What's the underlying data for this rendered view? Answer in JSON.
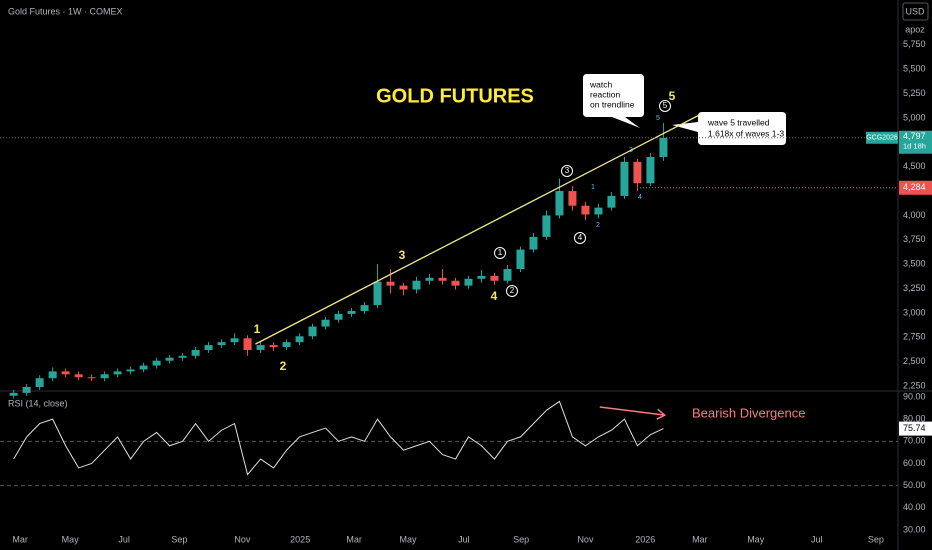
{
  "chart_data": [
    {
      "type": "candlestick",
      "title": "Gold Futures · 1W · COMEX",
      "currency": "USD",
      "user": "apoz",
      "x": [
        -1,
        1,
        3,
        5,
        7,
        9,
        11,
        13,
        15,
        17,
        19,
        21,
        23,
        25,
        27,
        29,
        31,
        33,
        35,
        37,
        39,
        41,
        43,
        45,
        47,
        49,
        51,
        53,
        55,
        57,
        59,
        61,
        63,
        65,
        67,
        69,
        71,
        73,
        75,
        77,
        79,
        81,
        83,
        85,
        87,
        89,
        91,
        93,
        95,
        97,
        99
      ],
      "open": [
        2150,
        2180,
        2240,
        2330,
        2400,
        2370,
        2340,
        2330,
        2370,
        2400,
        2420,
        2460,
        2510,
        2540,
        2560,
        2620,
        2670,
        2700,
        2740,
        2620,
        2670,
        2650,
        2700,
        2760,
        2860,
        2930,
        2990,
        3020,
        3080,
        3320,
        3280,
        3240,
        3330,
        3360,
        3330,
        3280,
        3350,
        3380,
        3330,
        3450,
        3650,
        3780,
        4000,
        4250,
        4100,
        4010,
        4080,
        4200,
        4550,
        4330,
        4600
      ],
      "high": [
        2210,
        2270,
        2360,
        2440,
        2430,
        2400,
        2370,
        2400,
        2430,
        2450,
        2490,
        2540,
        2570,
        2590,
        2650,
        2700,
        2730,
        2790,
        2770,
        2700,
        2700,
        2730,
        2790,
        2890,
        2960,
        3020,
        3050,
        3110,
        3500,
        3450,
        3310,
        3370,
        3400,
        3450,
        3360,
        3380,
        3440,
        3410,
        3490,
        3680,
        3820,
        4050,
        4380,
        4300,
        4140,
        4120,
        4240,
        4600,
        4580,
        4640,
        4950
      ],
      "low": [
        2120,
        2150,
        2210,
        2300,
        2340,
        2310,
        2300,
        2300,
        2340,
        2370,
        2390,
        2430,
        2480,
        2510,
        2530,
        2590,
        2640,
        2670,
        2560,
        2590,
        2610,
        2620,
        2670,
        2730,
        2830,
        2900,
        2960,
        2990,
        3050,
        3200,
        3180,
        3200,
        3290,
        3290,
        3240,
        3250,
        3310,
        3290,
        3300,
        3420,
        3620,
        3750,
        3970,
        4050,
        3950,
        3970,
        4050,
        4170,
        4250,
        4300,
        4560
      ],
      "close": [
        2180,
        2240,
        2330,
        2400,
        2370,
        2340,
        2330,
        2370,
        2400,
        2420,
        2460,
        2510,
        2540,
        2560,
        2620,
        2670,
        2700,
        2740,
        2620,
        2670,
        2650,
        2700,
        2760,
        2860,
        2930,
        2990,
        3020,
        3080,
        3320,
        3280,
        3240,
        3330,
        3360,
        3330,
        3280,
        3350,
        3380,
        3330,
        3450,
        3650,
        3780,
        4000,
        4250,
        4100,
        4010,
        4080,
        4200,
        4550,
        4330,
        4600,
        4797
      ],
      "up_color": "#26a69a",
      "down_color": "#ef5350",
      "xlim": [
        -3.1,
        135.1
      ],
      "ylim": [
        2199,
        6210
      ],
      "yticks": [
        {
          "value": 2250,
          "label": "2,250"
        },
        {
          "value": 2500,
          "label": "2,500"
        },
        {
          "value": 2750,
          "label": "2,750"
        },
        {
          "value": 3000,
          "label": "3,000"
        },
        {
          "value": 3250,
          "label": "3,250"
        },
        {
          "value": 3500,
          "label": "3,500"
        },
        {
          "value": 3750,
          "label": "3,750"
        },
        {
          "value": 4000,
          "label": "4,000"
        },
        {
          "value": 4250,
          "label": "4,250"
        },
        {
          "value": 4500,
          "label": "4,500"
        },
        {
          "value": 4750,
          "label": "4,750"
        },
        {
          "value": 5000,
          "label": "5,000"
        },
        {
          "value": 5250,
          "label": "5,250"
        },
        {
          "value": 5500,
          "label": "5,500"
        },
        {
          "value": 5750,
          "label": "5,750"
        }
      ],
      "last_price": {
        "value": 4797,
        "label": "4,797",
        "symbol": "GCG2026",
        "countdown": "1d 18h",
        "color": "#26a69a"
      },
      "marked_price": {
        "value": 4284,
        "label": "4,284",
        "color": "#ef5350"
      },
      "trendline": {
        "x": [
          36.2,
          104.6
        ],
        "y": [
          2680,
          5033
        ],
        "color": "#f0e68c"
      }
    },
    {
      "type": "line",
      "title": "RSI (14, close)",
      "x": [
        -1,
        1,
        3,
        5,
        7,
        9,
        11,
        13,
        15,
        17,
        19,
        21,
        23,
        25,
        27,
        29,
        31,
        33,
        35,
        37,
        39,
        41,
        43,
        45,
        47,
        49,
        51,
        53,
        55,
        57,
        59,
        61,
        63,
        65,
        67,
        69,
        71,
        73,
        75,
        77,
        79,
        81,
        83,
        85,
        87,
        89,
        91,
        93,
        95,
        97,
        99
      ],
      "values": [
        62,
        72,
        78,
        80,
        68,
        58,
        60,
        66,
        72,
        62,
        70,
        74,
        68,
        70,
        78,
        70,
        75,
        78,
        55,
        62,
        58,
        66,
        72,
        74,
        76,
        70,
        72,
        70,
        80,
        72,
        66,
        68,
        70,
        64,
        62,
        72,
        68,
        62,
        70,
        72,
        78,
        84,
        88,
        72,
        68,
        72,
        75,
        80,
        68,
        73,
        75.74
      ],
      "color": "#e0e0e0",
      "last_value": 75.74,
      "levels": [
        70,
        50
      ],
      "xlim": [
        -3.1,
        135.1
      ],
      "ylim": [
        30,
        92.7
      ],
      "yticks": [
        {
          "value": 30,
          "label": "30.00"
        },
        {
          "value": 40,
          "label": "40.00"
        },
        {
          "value": 50,
          "label": "50.00"
        },
        {
          "value": 60,
          "label": "60.00"
        },
        {
          "value": 70,
          "label": "70.00"
        },
        {
          "value": 80,
          "label": "80.00"
        },
        {
          "value": 90,
          "label": "90.00"
        }
      ],
      "xticks": [
        {
          "value": 0,
          "label": "Mar"
        },
        {
          "value": 7.7,
          "label": "May"
        },
        {
          "value": 16,
          "label": "Jul"
        },
        {
          "value": 24.5,
          "label": "Sep"
        },
        {
          "value": 34.2,
          "label": "Nov"
        },
        {
          "value": 43.1,
          "label": "2025"
        },
        {
          "value": 51.4,
          "label": "Mar"
        },
        {
          "value": 59.7,
          "label": "May"
        },
        {
          "value": 68.3,
          "label": "Jul"
        },
        {
          "value": 77.1,
          "label": "Sep"
        },
        {
          "value": 87,
          "label": "Nov"
        },
        {
          "value": 96.2,
          "label": "2026"
        },
        {
          "value": 104.6,
          "label": "Mar"
        },
        {
          "value": 113.2,
          "label": "May"
        },
        {
          "value": 122.6,
          "label": "Jul"
        },
        {
          "value": 131.7,
          "label": "Sep"
        }
      ],
      "divergence": {
        "label": "Bearish Divergence",
        "x": [
          89.2,
          99.2
        ],
        "y": [
          85.5,
          81.8
        ],
        "color": "#f77c80"
      }
    }
  ],
  "annotations": {
    "headline": "GOLD FUTURES",
    "waves": [
      "1",
      "2",
      "3",
      "4",
      "5"
    ],
    "circled": [
      "1",
      "2",
      "3",
      "4",
      "5"
    ],
    "minor": [
      "1",
      "2",
      "3",
      "4",
      "5"
    ],
    "callout_trend": [
      "watch",
      "reaction",
      "on trendline"
    ],
    "callout_wave": [
      "wave 5 travelled",
      "1.618x of waves 1-3"
    ]
  }
}
